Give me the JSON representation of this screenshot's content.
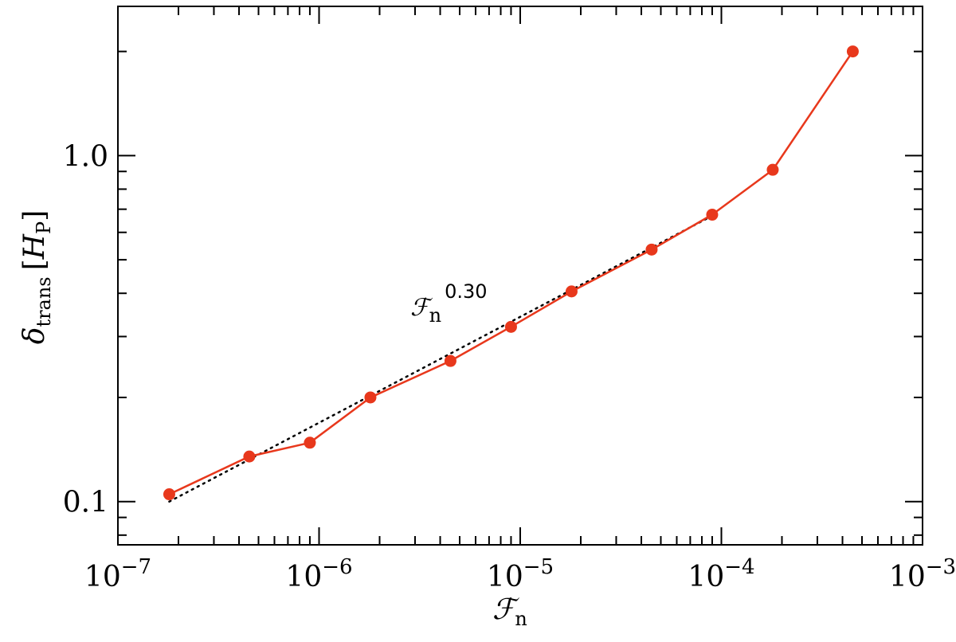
{
  "chart_data": {
    "type": "line",
    "xscale": "log",
    "yscale": "log",
    "xlim": [
      1e-07,
      0.001
    ],
    "ylim": [
      0.075,
      2.7
    ],
    "x_major_ticks": [
      1e-07,
      1e-06,
      1e-05,
      0.0001,
      0.001
    ],
    "x_tick_labels": [
      {
        "base": "10",
        "exp": "−7"
      },
      {
        "base": "10",
        "exp": "−6"
      },
      {
        "base": "10",
        "exp": "−5"
      },
      {
        "base": "10",
        "exp": "−4"
      },
      {
        "base": "10",
        "exp": "−3"
      }
    ],
    "y_major_ticks": [
      0.1,
      1.0
    ],
    "y_tick_labels": [
      "0.1",
      "1.0"
    ],
    "xlabel": {
      "main": "ℱ",
      "sub": "n"
    },
    "ylabel": {
      "main": "δ",
      "sub": "trans",
      "bracket_open": "[",
      "unit": "H",
      "unit_sub": "P",
      "bracket_close": "]"
    },
    "grid": false,
    "legend": "none",
    "series": [
      {
        "style": "solid-with-markers",
        "color": "#e8381c",
        "x": [
          1.8e-07,
          4.5e-07,
          9e-07,
          1.8e-06,
          4.5e-06,
          9e-06,
          1.8e-05,
          4.5e-05,
          9e-05,
          0.00018,
          0.00045
        ],
        "y": [
          0.105,
          0.135,
          0.148,
          0.2,
          0.255,
          0.32,
          0.405,
          0.535,
          0.675,
          0.91,
          2.0
        ]
      },
      {
        "style": "dotted",
        "color": "#000000",
        "fit_exponent": 0.3,
        "x": [
          1.8e-07,
          9e-05
        ],
        "y": [
          0.1,
          0.67
        ]
      }
    ],
    "annotation": {
      "main": "ℱ",
      "sub": "n",
      "exp": "0.30",
      "x": 2.8e-06,
      "y": 0.43
    }
  }
}
